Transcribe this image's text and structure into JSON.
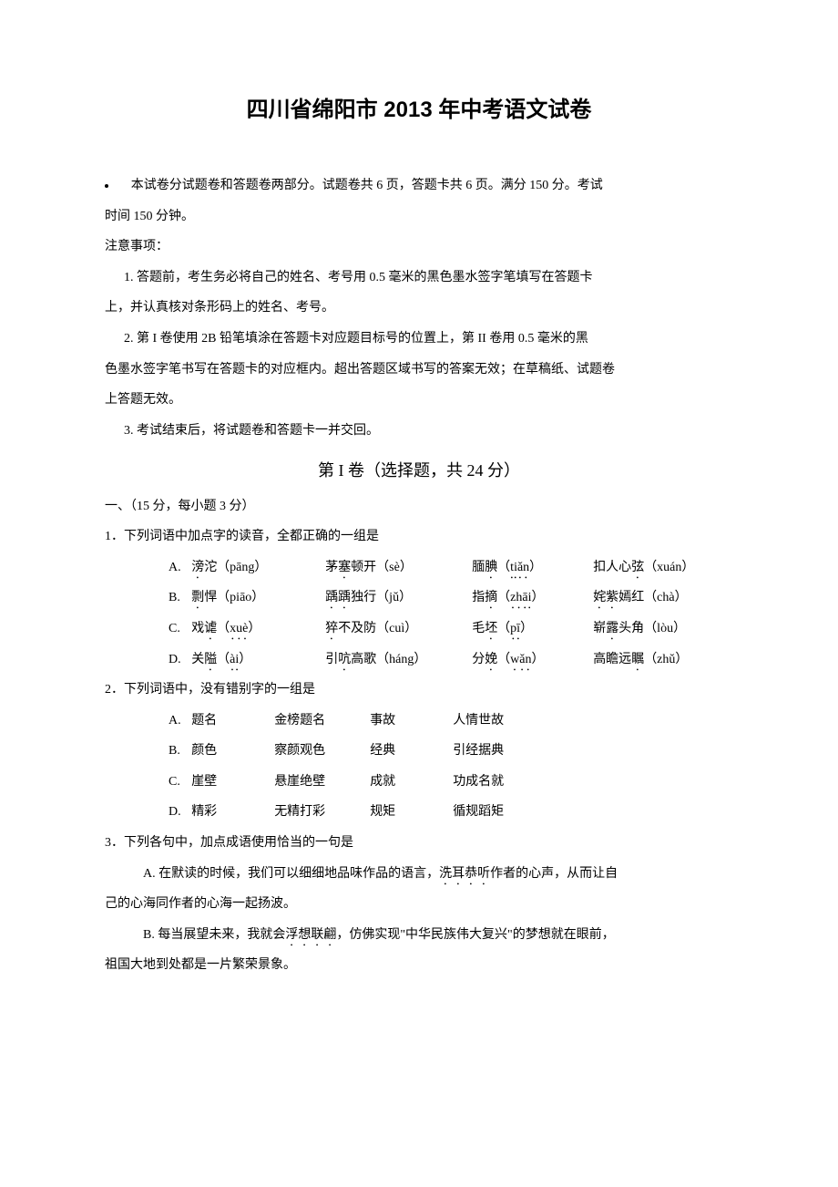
{
  "title": "四川省绵阳市 2013 年中考语文试卷",
  "intro": {
    "line1_pre": "本试卷分试题卷和答题卷两部分。试题卷共 6 页，答题卡共 6 页。满分 150 分。考试",
    "line1_post": "时间 150 分钟。",
    "notice_label": "注意事项：",
    "item1_a": "1.  答题前，考生务必将自己的姓名、考号用 0.5 毫米的黑色墨水签字笔填写在答题卡",
    "item1_b": "上，并认真核对条形码上的姓名、考号。",
    "item2_a": "2.  第 I 卷使用 2B 铅笔填涂在答题卡对应题目标号的位置上，第 II 卷用 0.5 毫米的黑",
    "item2_b": "色墨水签字笔书写在答题卡的对应框内。超出答题区域书写的答案无效；在草稿纸、试题卷",
    "item2_c": "上答题无效。",
    "item3": "3.  考试结束后，将试题卷和答题卡一并交回。"
  },
  "section1_header": "第 I 卷（选择题，共 24 分）",
  "section1_sub": "一、（15 分，每小题 3 分）",
  "q1": {
    "stem": "1．下列词语中加点字的读音，全都正确的一组是",
    "opts": [
      {
        "l": "A.",
        "w1": "滂",
        "w1r": "沱（pāng）",
        "w2p": "茅",
        "w2d": "塞",
        "w2s": "顿开（sè）",
        "w3d": "腼",
        "w3r": "腆（tiǎn）",
        "w4p": "扣人心",
        "w4d": "弦",
        "w4s": "（xuán）"
      },
      {
        "l": "B.",
        "w1": "剽",
        "w1r": "悍（piāo）",
        "w2p": "踽踽",
        "w2d": "",
        "w2s": "独行（jǔ）",
        "w3d": "指",
        "w3r": "摘（zhāi）",
        "w4p": "姹紫",
        "w4d": "嫣",
        "w4s": "红（chà）"
      },
      {
        "l": "C.",
        "w1": "戏",
        "w1r": "谑（xuè）",
        "w2p": "猝",
        "w2d": "",
        "w2s": "不及防（cuì）",
        "w3d": "毛",
        "w3r": "坯（pī）",
        "w4p": "崭",
        "w4d": "露",
        "w4s": "头角（lòu）"
      },
      {
        "l": "D.",
        "w1": "关",
        "w1r": "隘（ài）",
        "w2p": "引",
        "w2d": "吭",
        "w2s": "高歌（háng）",
        "w3d": "分",
        "w3r": "娩（wǎn）",
        "w4p": "高瞻远",
        "w4d": "瞩",
        "w4s": "（zhǔ）"
      }
    ]
  },
  "q2": {
    "stem": "2．下列词语中，没有错别字的一组是",
    "opts": [
      {
        "l": "A.",
        "a": "题名",
        "b": "金榜题名",
        "c": "事故",
        "d": "人情世故"
      },
      {
        "l": "B.",
        "a": "颜色",
        "b": "察颜观色",
        "c": "经典",
        "d": "引经据典"
      },
      {
        "l": "C.",
        "a": "崖壁",
        "b": "悬崖绝壁",
        "c": "成就",
        "d": "功成名就"
      },
      {
        "l": "D.",
        "a": "精彩",
        "b": "无精打彩",
        "c": "规矩",
        "d": "循规蹈矩"
      }
    ]
  },
  "q3": {
    "stem": "3．下列各句中，加点成语使用恰当的一句是",
    "a1": "A.  在默读的时候，我们可以细细地品味作品的语言，",
    "a_idiom": "洗耳恭听",
    "a2": "作者的心声，从而让自",
    "a3": "己的心海同作者的心海一起扬波。",
    "b1": "B.  每当展望未来，我就会",
    "b_idiom": "浮想联翩",
    "b2": "，仿佛实现\"中华民族伟大复兴\"的梦想就在眼前，",
    "b3": "祖国大地到处都是一片繁荣景象。"
  }
}
